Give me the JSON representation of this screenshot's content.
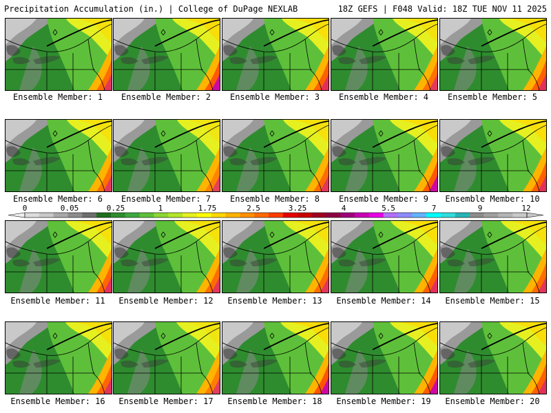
{
  "header": {
    "title_left": "Precipitation Accumulation (in.) | College of DuPage NEXLAB",
    "title_right": "18Z GEFS | F048 Valid: 18Z TUE NOV 11 2025"
  },
  "members": [
    {
      "label": "Ensemble Member: 1",
      "intensity": 0.6
    },
    {
      "label": "Ensemble Member: 2",
      "intensity": 0.75
    },
    {
      "label": "Ensemble Member: 3",
      "intensity": 0.7
    },
    {
      "label": "Ensemble Member: 4",
      "intensity": 0.55
    },
    {
      "label": "Ensemble Member: 5",
      "intensity": 0.7
    },
    {
      "label": "Ensemble Member: 6",
      "intensity": 0.55
    },
    {
      "label": "Ensemble Member: 7",
      "intensity": 0.4
    },
    {
      "label": "Ensemble Member: 8",
      "intensity": 0.6
    },
    {
      "label": "Ensemble Member: 9",
      "intensity": 0.75
    },
    {
      "label": "Ensemble Member: 10",
      "intensity": 0.7
    },
    {
      "label": "Ensemble Member: 11",
      "intensity": 0.65
    },
    {
      "label": "Ensemble Member: 12",
      "intensity": 0.6
    },
    {
      "label": "Ensemble Member: 13",
      "intensity": 0.6
    },
    {
      "label": "Ensemble Member: 14",
      "intensity": 0.7
    },
    {
      "label": "Ensemble Member: 15",
      "intensity": 0.6
    },
    {
      "label": "Ensemble Member: 16",
      "intensity": 0.65
    },
    {
      "label": "Ensemble Member: 17",
      "intensity": 0.45
    },
    {
      "label": "Ensemble Member: 18",
      "intensity": 0.8
    },
    {
      "label": "Ensemble Member: 19",
      "intensity": 0.75
    },
    {
      "label": "Ensemble Member: 20",
      "intensity": 0.7
    }
  ],
  "colorbar": {
    "labels": [
      "0",
      "0.05",
      "0.25",
      "1",
      "1.75",
      "2.5",
      "3.25",
      "4",
      "5.5",
      "7",
      "9",
      "12"
    ],
    "colors": [
      "#dcdcdc",
      "#c8c8c8",
      "#a9a9a9",
      "#8c8c8c",
      "#6e6e6e",
      "#1e6e1e",
      "#2e8c2e",
      "#3ea83e",
      "#5ec03a",
      "#8cd632",
      "#b4e628",
      "#e6f020",
      "#ffff00",
      "#ffd700",
      "#ffb400",
      "#ff9000",
      "#ff6a00",
      "#ff3c00",
      "#e60000",
      "#c80000",
      "#a00020",
      "#8c0040",
      "#a0007a",
      "#c800b4",
      "#e600e6",
      "#b46eff",
      "#8c8cff",
      "#64b4ff",
      "#00ffff",
      "#32dcdc",
      "#28b4b4",
      "#8c8c8c",
      "#a0a0a0",
      "#b4b4b4",
      "#c8c8c8"
    ]
  }
}
